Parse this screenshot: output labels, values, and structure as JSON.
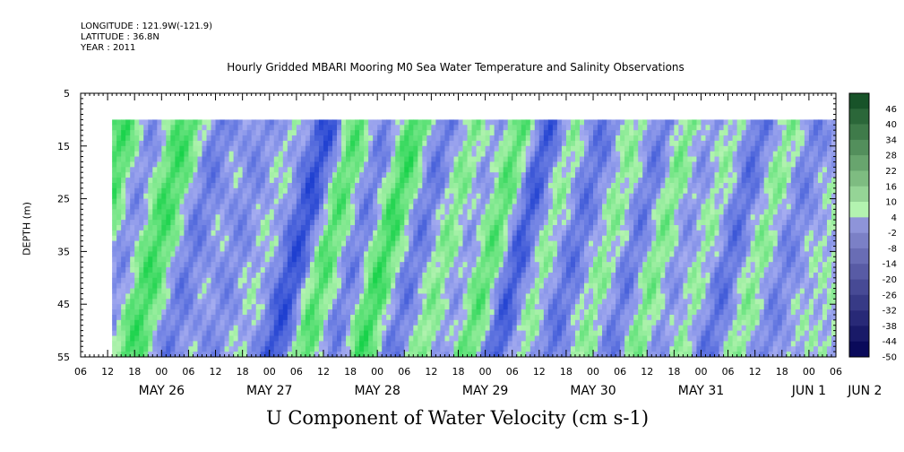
{
  "header": {
    "longitude": "LONGITUDE : 121.9W(-121.9)",
    "latitude": "LATITUDE : 36.8N",
    "year": "YEAR : 2011"
  },
  "colors": {
    "negative_strong": "#1e3fd0",
    "negative_weak": "#a6adf0",
    "positive_weak": "#b3f3b0",
    "positive_strong": "#18d24a",
    "no_data": "#ffffff"
  },
  "chart_data": {
    "type": "heatmap",
    "title": "Hourly Gridded MBARI Mooring M0 Sea Water Temperature and Salinity Observations",
    "ylabel": "DEPTH (m)",
    "xlabel": "U Component of Water Velocity (cm s-1)",
    "y_ticks": [
      "5",
      "15",
      "25",
      "35",
      "45",
      "55"
    ],
    "ylim": [
      55,
      5
    ],
    "data_depth_range": [
      10,
      55
    ],
    "x_start": "2011-05-26 06:00",
    "x_end": "2011-06-02 06:00",
    "data_start": "2011-05-26 13:00",
    "x_hour_ticks": [
      "06",
      "12",
      "18",
      "00",
      "06",
      "12",
      "18",
      "00",
      "06",
      "12",
      "18",
      "00",
      "06",
      "12",
      "18",
      "00",
      "06",
      "12",
      "18",
      "00",
      "06",
      "12",
      "18",
      "00",
      "06",
      "12",
      "18",
      "00",
      "06"
    ],
    "x_day_labels": [
      "MAY 26",
      "MAY 27",
      "MAY 28",
      "MAY 29",
      "MAY 30",
      "MAY 31",
      "JUN  1",
      "JUN  2"
    ],
    "colorbar": {
      "levels": [
        "46",
        "40",
        "34",
        "28",
        "22",
        "16",
        "10",
        "4",
        "-2",
        "-8",
        "-14",
        "-20",
        "-26",
        "-32",
        "-38",
        "-44",
        "-50"
      ],
      "range": [
        -50,
        50
      ]
    },
    "bands_day_positive": [
      {
        "day": "2011-05-26",
        "hour": 16,
        "level": 14
      },
      {
        "day": "2011-05-27",
        "hour": 4,
        "level": 12
      },
      {
        "day": "2011-05-27",
        "hour": 9,
        "level": 8
      },
      {
        "day": "2011-05-28",
        "hour": 1,
        "level": 10
      },
      {
        "day": "2011-05-28",
        "hour": 19,
        "level": 14
      },
      {
        "day": "2011-05-29",
        "hour": 8,
        "level": 16
      },
      {
        "day": "2011-05-29",
        "hour": 22,
        "level": 10
      },
      {
        "day": "2011-05-30",
        "hour": 8,
        "level": 14
      },
      {
        "day": "2011-05-30",
        "hour": 19,
        "level": 8
      },
      {
        "day": "2011-05-31",
        "hour": 10,
        "level": 6
      },
      {
        "day": "2011-05-31",
        "hour": 21,
        "level": 14
      },
      {
        "day": "2011-06-01",
        "hour": 8,
        "level": 6
      },
      {
        "day": "2011-06-01",
        "hour": 20,
        "level": 8
      }
    ],
    "bands_day_negative": [
      {
        "day": "2011-05-26",
        "hour": 22,
        "level": -10
      },
      {
        "day": "2011-05-27",
        "hour": 12,
        "level": -14
      },
      {
        "day": "2011-05-28",
        "hour": 0,
        "level": -16
      },
      {
        "day": "2011-05-28",
        "hour": 13,
        "level": -20
      },
      {
        "day": "2011-05-29",
        "hour": 2,
        "level": -12
      },
      {
        "day": "2011-05-29",
        "hour": 15,
        "level": -12
      },
      {
        "day": "2011-05-30",
        "hour": 2,
        "level": -10
      },
      {
        "day": "2011-05-30",
        "hour": 14,
        "level": -20
      },
      {
        "day": "2011-05-31",
        "hour": 2,
        "level": -12
      },
      {
        "day": "2011-05-31",
        "hour": 16,
        "level": -14
      },
      {
        "day": "2011-06-01",
        "hour": 1,
        "level": -10
      },
      {
        "day": "2011-06-01",
        "hour": 13,
        "level": -14
      },
      {
        "day": "2011-06-02",
        "hour": 1,
        "level": -10
      }
    ]
  }
}
